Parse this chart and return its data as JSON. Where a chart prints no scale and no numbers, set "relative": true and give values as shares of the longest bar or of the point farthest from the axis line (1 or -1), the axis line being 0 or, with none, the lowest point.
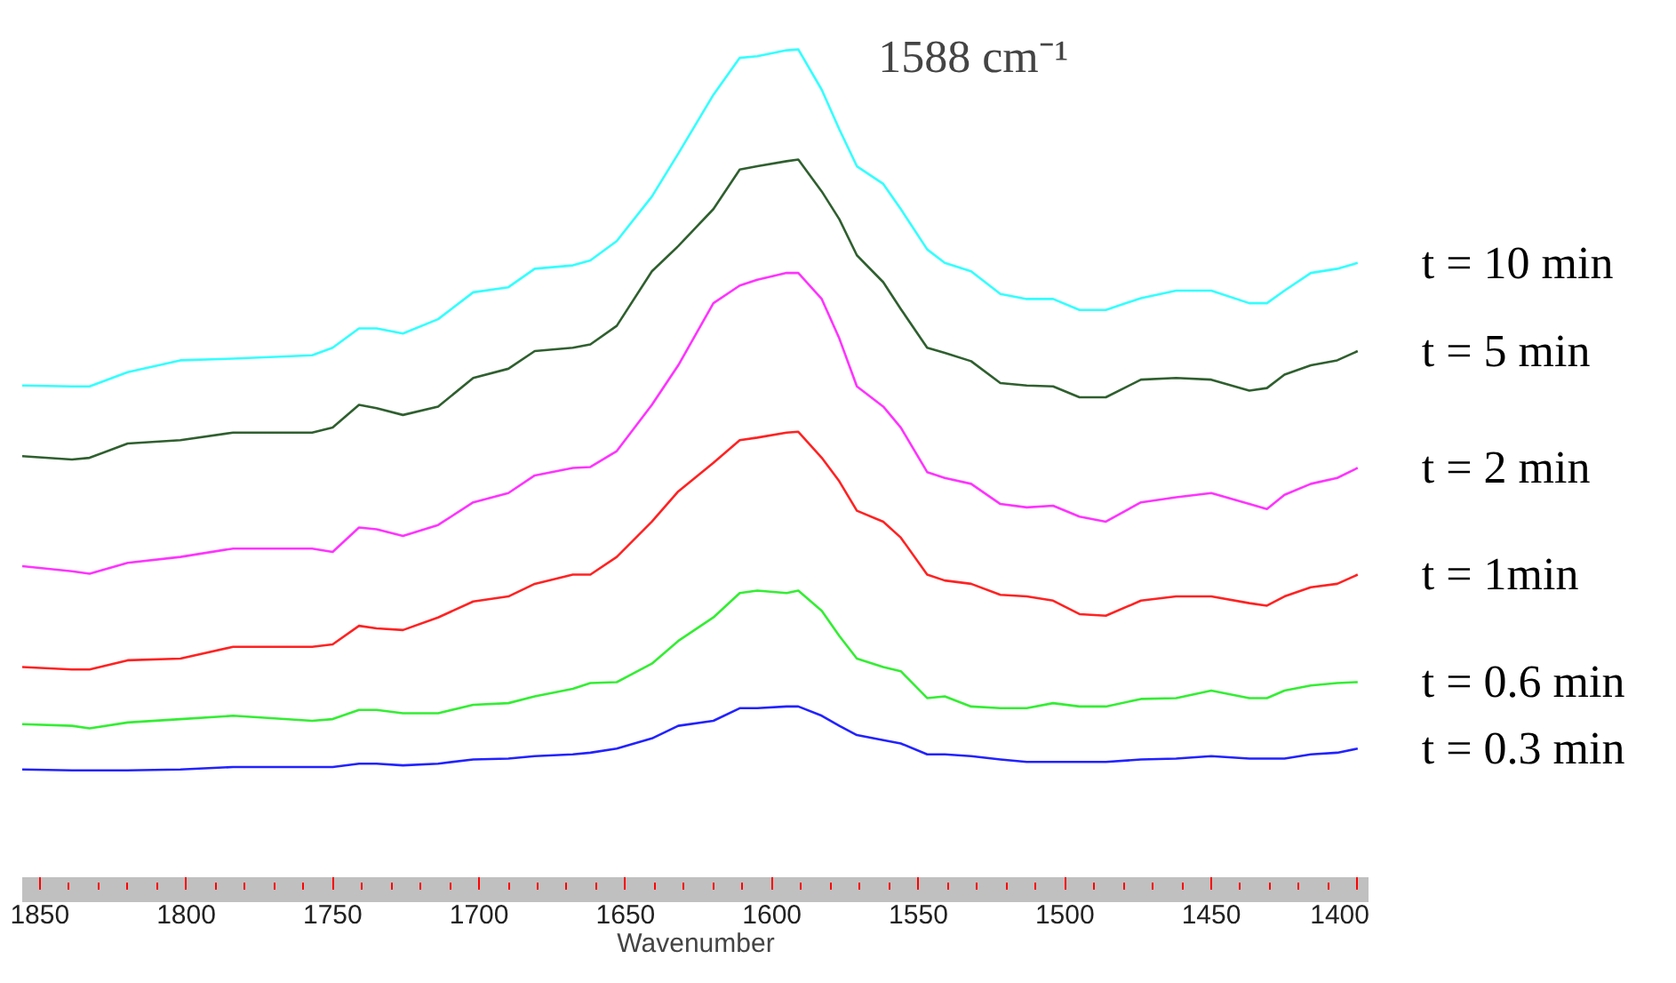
{
  "chart_data": {
    "type": "line",
    "relative": true,
    "xlabel": "Wavenumber",
    "xlim": [
      1856,
      1396
    ],
    "xticks": [
      1850,
      1800,
      1750,
      1700,
      1650,
      1600,
      1550,
      1500,
      1450,
      1400
    ],
    "grid": false,
    "legend": false,
    "annotations": [
      {
        "text": "1588 cm⁻¹",
        "x": 1588,
        "y": 1
      }
    ],
    "x": [
      1856,
      1839,
      1833,
      1820,
      1802,
      1784,
      1757,
      1750,
      1741,
      1735,
      1726,
      1714,
      1702,
      1690,
      1681,
      1668,
      1662,
      1653,
      1641,
      1632,
      1620,
      1611,
      1605,
      1595,
      1591,
      1583,
      1577,
      1571,
      1562,
      1556,
      1547,
      1541,
      1532,
      1522,
      1513,
      1504,
      1495,
      1486,
      1474,
      1462,
      1450,
      1437,
      1431,
      1425,
      1416,
      1407,
      1400
    ],
    "series": [
      {
        "name": "t = 10 min",
        "color": "#33ffff",
        "values": [
          0.6,
          0.599,
          0.599,
          0.616,
          0.63,
          0.632,
          0.636,
          0.645,
          0.668,
          0.668,
          0.662,
          0.679,
          0.711,
          0.717,
          0.739,
          0.743,
          0.749,
          0.772,
          0.825,
          0.876,
          0.946,
          0.99,
          0.992,
          0.999,
          1.0,
          0.952,
          0.905,
          0.861,
          0.84,
          0.81,
          0.762,
          0.746,
          0.736,
          0.709,
          0.703,
          0.703,
          0.69,
          0.69,
          0.704,
          0.713,
          0.713,
          0.698,
          0.698,
          0.713,
          0.734,
          0.739,
          0.746
        ]
      },
      {
        "name": "t = 5 min",
        "color": "#2f5f2f",
        "values": [
          0.516,
          0.512,
          0.514,
          0.531,
          0.535,
          0.544,
          0.544,
          0.55,
          0.577,
          0.573,
          0.565,
          0.575,
          0.609,
          0.62,
          0.641,
          0.645,
          0.649,
          0.671,
          0.736,
          0.766,
          0.81,
          0.857,
          0.861,
          0.867,
          0.869,
          0.831,
          0.798,
          0.755,
          0.723,
          0.691,
          0.645,
          0.639,
          0.629,
          0.603,
          0.6,
          0.599,
          0.586,
          0.586,
          0.607,
          0.609,
          0.607,
          0.594,
          0.597,
          0.613,
          0.624,
          0.63,
          0.641
        ]
      },
      {
        "name": "t = 2 min",
        "color": "#ff33ff",
        "values": [
          0.385,
          0.379,
          0.376,
          0.389,
          0.396,
          0.406,
          0.406,
          0.402,
          0.431,
          0.429,
          0.421,
          0.434,
          0.461,
          0.472,
          0.493,
          0.502,
          0.503,
          0.522,
          0.577,
          0.624,
          0.698,
          0.719,
          0.726,
          0.734,
          0.734,
          0.703,
          0.656,
          0.599,
          0.575,
          0.55,
          0.497,
          0.49,
          0.483,
          0.459,
          0.455,
          0.457,
          0.444,
          0.438,
          0.461,
          0.467,
          0.472,
          0.459,
          0.453,
          0.47,
          0.483,
          0.49,
          0.502
        ]
      },
      {
        "name": "t = 1min",
        "color": "#ff2222",
        "values": [
          0.265,
          0.262,
          0.262,
          0.273,
          0.275,
          0.289,
          0.289,
          0.292,
          0.314,
          0.311,
          0.309,
          0.324,
          0.343,
          0.349,
          0.364,
          0.375,
          0.375,
          0.396,
          0.438,
          0.474,
          0.508,
          0.535,
          0.538,
          0.544,
          0.545,
          0.514,
          0.486,
          0.451,
          0.438,
          0.419,
          0.375,
          0.368,
          0.364,
          0.351,
          0.349,
          0.344,
          0.328,
          0.326,
          0.344,
          0.349,
          0.349,
          0.341,
          0.338,
          0.349,
          0.36,
          0.364,
          0.375
        ]
      },
      {
        "name": "t = 0.6 min",
        "color": "#33ee33",
        "values": [
          0.197,
          0.195,
          0.192,
          0.199,
          0.203,
          0.207,
          0.201,
          0.203,
          0.214,
          0.214,
          0.21,
          0.21,
          0.22,
          0.222,
          0.23,
          0.239,
          0.246,
          0.247,
          0.269,
          0.296,
          0.324,
          0.353,
          0.356,
          0.353,
          0.356,
          0.332,
          0.302,
          0.275,
          0.265,
          0.26,
          0.228,
          0.23,
          0.218,
          0.216,
          0.216,
          0.222,
          0.218,
          0.218,
          0.227,
          0.228,
          0.237,
          0.228,
          0.228,
          0.237,
          0.243,
          0.246,
          0.247
        ]
      },
      {
        "name": "t = 0.3 min",
        "color": "#2222ff",
        "values": [
          0.143,
          0.142,
          0.142,
          0.142,
          0.143,
          0.146,
          0.146,
          0.146,
          0.15,
          0.15,
          0.148,
          0.15,
          0.155,
          0.156,
          0.159,
          0.161,
          0.163,
          0.168,
          0.18,
          0.195,
          0.201,
          0.216,
          0.216,
          0.218,
          0.218,
          0.207,
          0.195,
          0.184,
          0.178,
          0.174,
          0.161,
          0.161,
          0.159,
          0.155,
          0.152,
          0.152,
          0.152,
          0.152,
          0.155,
          0.156,
          0.159,
          0.156,
          0.156,
          0.156,
          0.161,
          0.163,
          0.168
        ]
      }
    ]
  }
}
